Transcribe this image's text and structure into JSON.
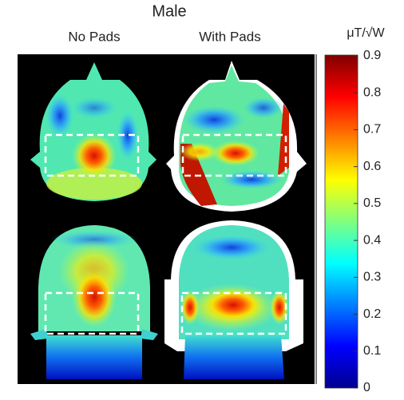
{
  "title": "Male",
  "columns": [
    "No Pads",
    "With Pads"
  ],
  "colorbar": {
    "label": "μT/√W",
    "clim": [
      0,
      0.9
    ],
    "ticks": [
      0,
      0.1,
      0.2,
      0.3,
      0.4,
      0.5,
      0.6,
      0.7,
      0.8,
      0.9
    ]
  }
}
